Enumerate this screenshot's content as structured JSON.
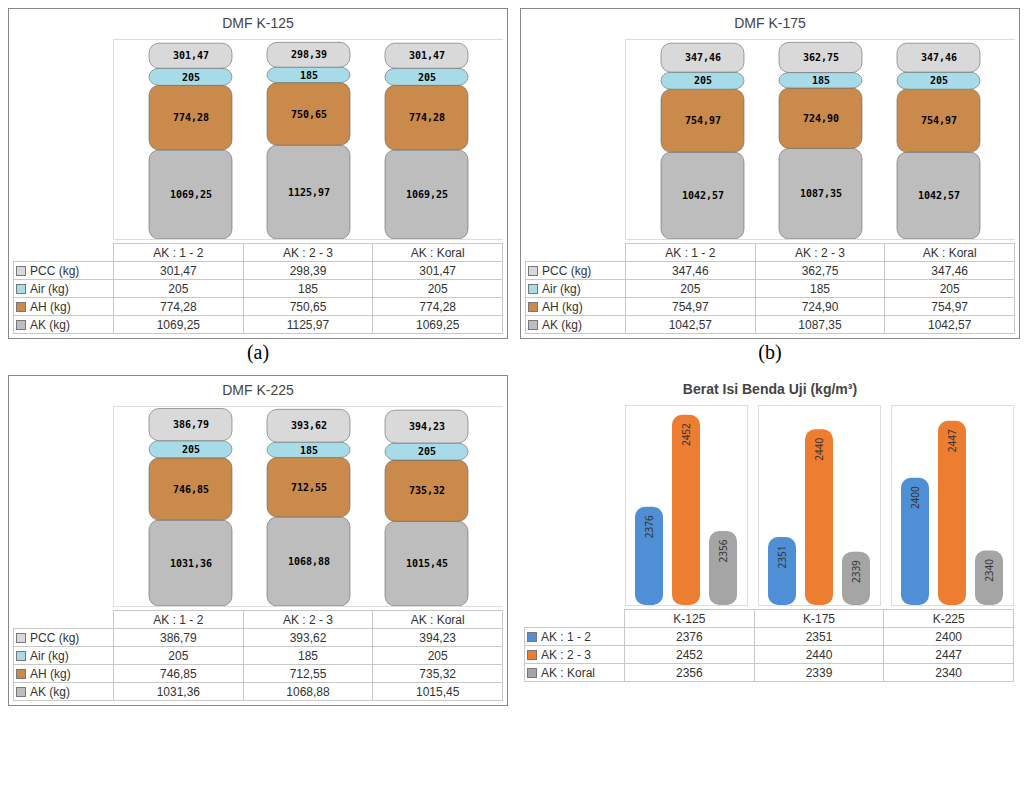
{
  "chart_data": [
    {
      "type": "bar",
      "title": "DMF K-125",
      "panel_label": "(a)",
      "stacked": true,
      "data_labels": true,
      "tick_labels": false,
      "ylim": [
        0,
        2400
      ],
      "yticks": [],
      "categories": [
        "AK : 1 - 2",
        "AK : 2 - 3",
        "AK : Koral"
      ],
      "series": [
        {
          "name": "PCC (kg)",
          "color": "#d9d9d9",
          "values": [
            301.47,
            298.39,
            301.47
          ],
          "value_labels": [
            "301,47",
            "298,39",
            "301,47"
          ]
        },
        {
          "name": "Air (kg)",
          "color": "#a8dbe8",
          "values": [
            205,
            185,
            205
          ],
          "value_labels": [
            "205",
            "185",
            "205"
          ]
        },
        {
          "name": "AH (kg)",
          "color": "#c98a4b",
          "values": [
            774.28,
            750.65,
            774.28
          ],
          "value_labels": [
            "774,28",
            "750,65",
            "774,28"
          ]
        },
        {
          "name": "AK (kg)",
          "color": "#bdbdbd",
          "values": [
            1069.25,
            1125.97,
            1069.25
          ],
          "value_labels": [
            "1069,25",
            "1125,97",
            "1069,25"
          ]
        }
      ]
    },
    {
      "type": "bar",
      "title": "DMF K-175",
      "panel_label": "(b)",
      "stacked": true,
      "data_labels": true,
      "tick_labels": false,
      "ylim": [
        0,
        2400
      ],
      "yticks": [],
      "categories": [
        "AK : 1 - 2",
        "AK : 2 - 3",
        "AK : Koral"
      ],
      "series": [
        {
          "name": "PCC (kg)",
          "color": "#d9d9d9",
          "values": [
            347.46,
            362.75,
            347.46
          ],
          "value_labels": [
            "347,46",
            "362,75",
            "347,46"
          ]
        },
        {
          "name": "Air (kg)",
          "color": "#a8dbe8",
          "values": [
            205,
            185,
            205
          ],
          "value_labels": [
            "205",
            "185",
            "205"
          ]
        },
        {
          "name": "AH (kg)",
          "color": "#c98a4b",
          "values": [
            754.97,
            724.9,
            754.97
          ],
          "value_labels": [
            "754,97",
            "724,90",
            "754,97"
          ]
        },
        {
          "name": "AK (kg)",
          "color": "#bdbdbd",
          "values": [
            1042.57,
            1087.35,
            1042.57
          ],
          "value_labels": [
            "1042,57",
            "1087,35",
            "1042,57"
          ]
        }
      ]
    },
    {
      "type": "bar",
      "title": "DMF K-225",
      "stacked": true,
      "data_labels": true,
      "tick_labels": false,
      "ylim": [
        0,
        2400
      ],
      "yticks": [],
      "categories": [
        "AK : 1 - 2",
        "AK : 2 - 3",
        "AK : Koral"
      ],
      "series": [
        {
          "name": "PCC (kg)",
          "color": "#d9d9d9",
          "values": [
            386.79,
            393.62,
            394.23
          ],
          "value_labels": [
            "386,79",
            "393,62",
            "394,23"
          ]
        },
        {
          "name": "Air (kg)",
          "color": "#a8dbe8",
          "values": [
            205,
            185,
            205
          ],
          "value_labels": [
            "205",
            "185",
            "205"
          ]
        },
        {
          "name": "AH (kg)",
          "color": "#c98a4b",
          "values": [
            746.85,
            712.55,
            735.32
          ],
          "value_labels": [
            "746,85",
            "712,55",
            "735,32"
          ]
        },
        {
          "name": "AK (kg)",
          "color": "#bdbdbd",
          "values": [
            1031.36,
            1068.88,
            1015.45
          ],
          "value_labels": [
            "1031,36",
            "1068,88",
            "1015,45"
          ]
        }
      ]
    },
    {
      "type": "bar",
      "title": "Berat Isi Benda Uji (kg/m³)",
      "data_labels": true,
      "tick_labels": false,
      "ylim": [
        2295,
        2460
      ],
      "yticks": [],
      "categories": [
        "K-125",
        "K-175",
        "K-225"
      ],
      "series": [
        {
          "name": "AK : 1 - 2",
          "color": "#4f8fd6",
          "values": [
            2376,
            2351,
            2400
          ]
        },
        {
          "name": "AK : 2 - 3",
          "color": "#ed7d31",
          "values": [
            2452,
            2440,
            2447
          ]
        },
        {
          "name": "AK : Koral",
          "color": "#a5a5a5",
          "values": [
            2356,
            2339,
            2340
          ]
        }
      ]
    }
  ]
}
